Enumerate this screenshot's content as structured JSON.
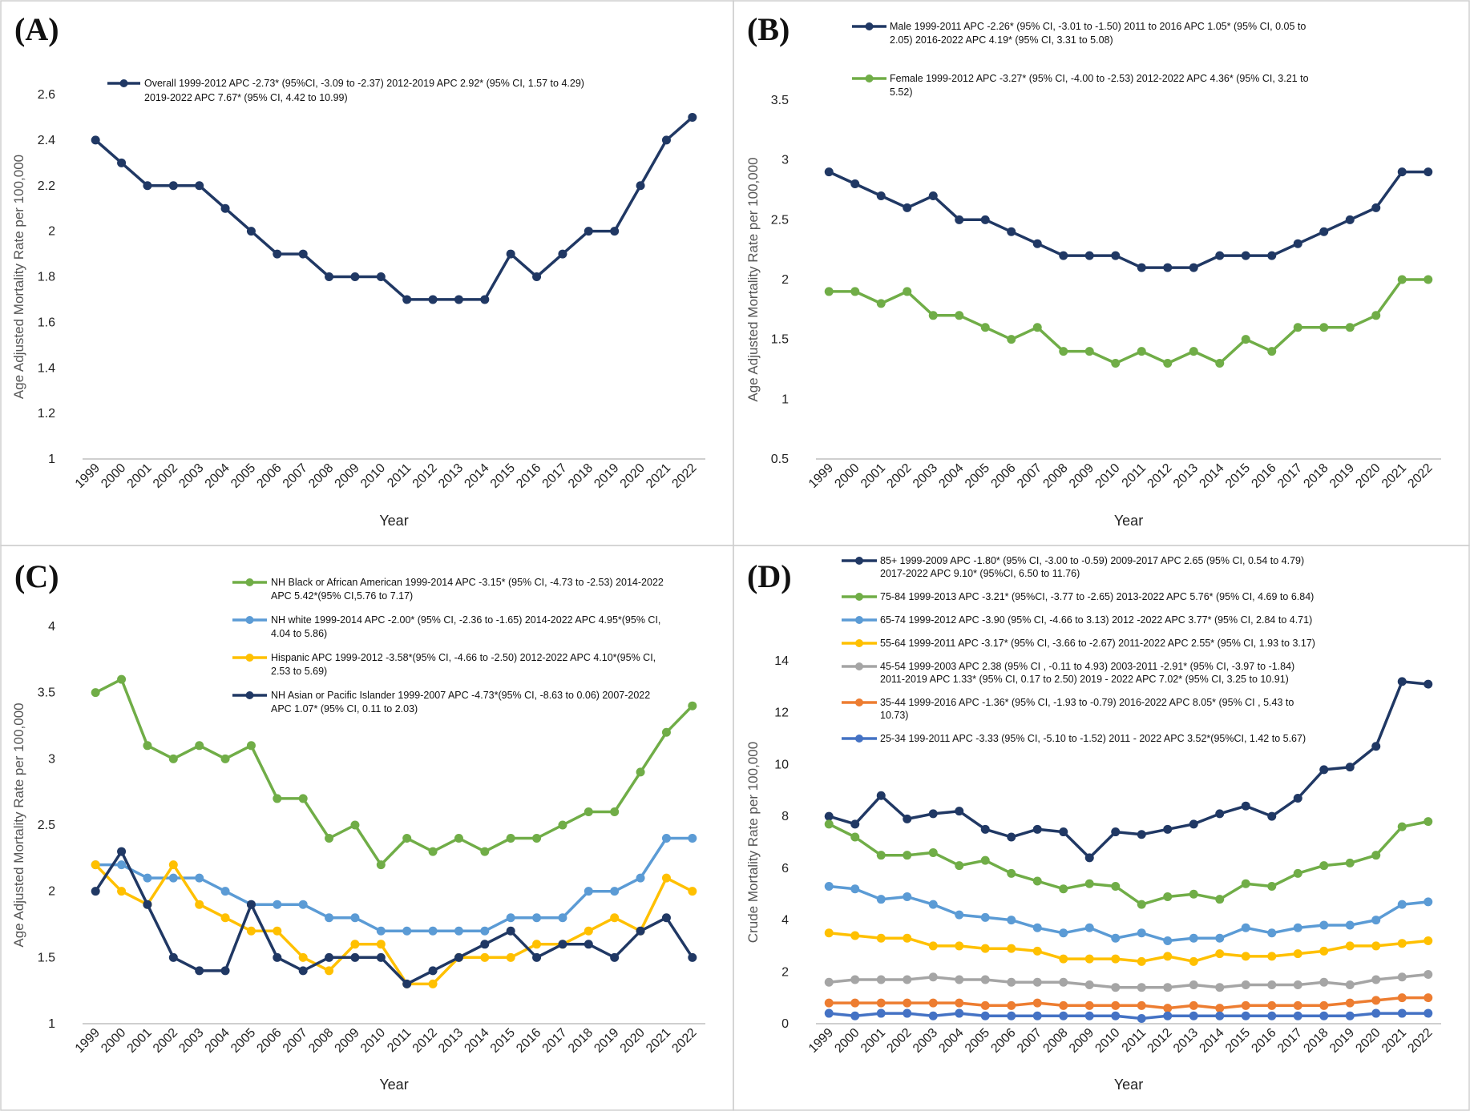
{
  "chart_data": [
    {
      "type": "line",
      "panel": "(A)",
      "xlabel": "Year",
      "ylabel": "Age Adjusted Mortality Rate per 100,000",
      "ylim": [
        1,
        2.6
      ],
      "yticks": [
        "1",
        "1.2",
        "1.4",
        "1.6",
        "1.8",
        "2",
        "2.2",
        "2.4",
        "2.6"
      ],
      "categories": [
        "1999",
        "2000",
        "2001",
        "2002",
        "2003",
        "2004",
        "2005",
        "2006",
        "2007",
        "2008",
        "2009",
        "2010",
        "2011",
        "2012",
        "2013",
        "2014",
        "2015",
        "2016",
        "2017",
        "2018",
        "2019",
        "2020",
        "2021",
        "2022"
      ],
      "series": [
        {
          "name": "Overall",
          "color": "#203864",
          "legend": [
            "Overall 1999-2012 APC -2.73* (95%CI, -3.09 to -2.37) 2012-2019 APC 2.92* (95% CI, 1.57 to 4.29)",
            "2019-2022 APC 7.67* (95% CI, 4.42 to 10.99)"
          ],
          "values": [
            2.4,
            2.3,
            2.2,
            2.2,
            2.2,
            2.1,
            2.0,
            1.9,
            1.9,
            1.8,
            1.8,
            1.8,
            1.7,
            1.7,
            1.7,
            1.7,
            1.9,
            1.8,
            1.9,
            2.0,
            2.0,
            2.2,
            2.4,
            2.5
          ]
        }
      ]
    },
    {
      "type": "line",
      "panel": "(B)",
      "xlabel": "Year",
      "ylabel": "Age Adjusted Mortality Rate per 100,000",
      "ylim": [
        0.5,
        3.5
      ],
      "yticks": [
        "0.5",
        "1",
        "1.5",
        "2",
        "2.5",
        "3",
        "3.5"
      ],
      "categories": [
        "1999",
        "2000",
        "2001",
        "2002",
        "2003",
        "2004",
        "2005",
        "2006",
        "2007",
        "2008",
        "2009",
        "2010",
        "2011",
        "2012",
        "2013",
        "2014",
        "2015",
        "2016",
        "2017",
        "2018",
        "2019",
        "2020",
        "2021",
        "2022"
      ],
      "series": [
        {
          "name": "Male",
          "color": "#203864",
          "legend": [
            "Male 1999-2011 APC -2.26* (95% CI, -3.01 to -1.50) 2011 to 2016 APC 1.05* (95% CI, 0.05 to",
            "2.05) 2016-2022 APC 4.19* (95% CI, 3.31 to 5.08)"
          ],
          "values": [
            2.9,
            2.8,
            2.7,
            2.6,
            2.7,
            2.5,
            2.5,
            2.4,
            2.3,
            2.2,
            2.2,
            2.2,
            2.1,
            2.1,
            2.1,
            2.2,
            2.2,
            2.2,
            2.3,
            2.4,
            2.5,
            2.6,
            2.9,
            2.9
          ]
        },
        {
          "name": "Female",
          "color": "#70AD47",
          "legend": [
            "Female 1999-2012 APC -3.27* (95% CI, -4.00 to -2.53) 2012-2022 APC 4.36* (95% CI, 3.21 to",
            "5.52)"
          ],
          "values": [
            1.9,
            1.9,
            1.8,
            1.9,
            1.7,
            1.7,
            1.6,
            1.5,
            1.6,
            1.4,
            1.4,
            1.3,
            1.4,
            1.3,
            1.4,
            1.3,
            1.5,
            1.4,
            1.6,
            1.6,
            1.6,
            1.7,
            2.0,
            2.0
          ]
        }
      ]
    },
    {
      "type": "line",
      "panel": "(C)",
      "xlabel": "Year",
      "ylabel": "Age Adjusted Mortality Rate per 100,000",
      "ylim": [
        1,
        4
      ],
      "yticks": [
        "1",
        "1.5",
        "2",
        "2.5",
        "3",
        "3.5",
        "4"
      ],
      "categories": [
        "1999",
        "2000",
        "2001",
        "2002",
        "2003",
        "2004",
        "2005",
        "2006",
        "2007",
        "2008",
        "2009",
        "2010",
        "2011",
        "2012",
        "2013",
        "2014",
        "2015",
        "2016",
        "2017",
        "2018",
        "2019",
        "2020",
        "2021",
        "2022"
      ],
      "series": [
        {
          "name": "NH Black or African American",
          "color": "#70AD47",
          "legend": [
            "NH Black or African American 1999-2014 APC -3.15* (95% CI, -4.73 to -2.53) 2014-2022",
            "APC 5.42*(95% CI,5.76  to 7.17)"
          ],
          "values": [
            3.5,
            3.6,
            3.1,
            3.0,
            3.1,
            3.0,
            3.1,
            2.7,
            2.7,
            2.4,
            2.5,
            2.2,
            2.4,
            2.3,
            2.4,
            2.3,
            2.4,
            2.4,
            2.5,
            2.6,
            2.6,
            2.9,
            3.2,
            3.4
          ]
        },
        {
          "name": "NH white",
          "color": "#5B9BD5",
          "legend": [
            "NH white 1999-2014 APC -2.00* (95% CI, -2.36 to -1.65) 2014-2022 APC 4.95*(95% CI,",
            "4.04 to 5.86)"
          ],
          "values": [
            2.2,
            2.2,
            2.1,
            2.1,
            2.1,
            2.0,
            1.9,
            1.9,
            1.9,
            1.8,
            1.8,
            1.7,
            1.7,
            1.7,
            1.7,
            1.7,
            1.8,
            1.8,
            1.8,
            2.0,
            2.0,
            2.1,
            2.4,
            2.4
          ]
        },
        {
          "name": "Hispanic",
          "color": "#FFC000",
          "legend": [
            "Hispanic APC 1999-2012 -3.58*(95% CI, -4.66 to -2.50) 2012-2022 APC 4.10*(95% CI,",
            "2.53 to 5.69)"
          ],
          "values": [
            2.2,
            2.0,
            1.9,
            2.2,
            1.9,
            1.8,
            1.7,
            1.7,
            1.5,
            1.4,
            1.6,
            1.6,
            1.3,
            1.3,
            1.5,
            1.5,
            1.5,
            1.6,
            1.6,
            1.7,
            1.8,
            1.7,
            2.1,
            2.0
          ]
        },
        {
          "name": "NH Asian or Pacific Islander",
          "color": "#203864",
          "legend": [
            "NH Asian or Pacific Islander  1999-2007 APC -4.73*(95% CI, -8.63 to 0.06) 2007-2022",
            "APC 1.07* (95% CI, 0.11 to 2.03)"
          ],
          "values": [
            2.0,
            2.3,
            1.9,
            1.5,
            1.4,
            1.4,
            1.9,
            1.5,
            1.4,
            1.5,
            1.5,
            1.5,
            1.3,
            1.4,
            1.5,
            1.6,
            1.7,
            1.5,
            1.6,
            1.6,
            1.5,
            1.7,
            1.8,
            1.5
          ]
        }
      ]
    },
    {
      "type": "line",
      "panel": "(D)",
      "xlabel": "Year",
      "ylabel": "Crude Mortality Rate per 100,000",
      "ylim": [
        0,
        14
      ],
      "yticks": [
        "0",
        "2",
        "4",
        "6",
        "8",
        "10",
        "12",
        "14"
      ],
      "categories": [
        "1999",
        "2000",
        "2001",
        "2002",
        "2003",
        "2004",
        "2005",
        "2006",
        "2007",
        "2008",
        "2009",
        "2010",
        "2011",
        "2012",
        "2013",
        "2014",
        "2015",
        "2016",
        "2017",
        "2018",
        "2019",
        "2020",
        "2021",
        "2022"
      ],
      "series": [
        {
          "name": "85+",
          "color": "#203864",
          "legend": [
            "85+  1999-2009 APC -1.80* (95% CI, -3.00 to -0.59) 2009-2017 APC 2.65 (95% CI, 0.54 to 4.79)",
            "2017-2022 APC 9.10* (95%CI, 6.50 to 11.76)"
          ],
          "values": [
            8.0,
            7.7,
            8.8,
            7.9,
            8.1,
            8.2,
            7.5,
            7.2,
            7.5,
            7.4,
            6.4,
            7.4,
            7.3,
            7.5,
            7.7,
            8.1,
            8.4,
            8.0,
            8.7,
            9.8,
            9.9,
            10.7,
            13.2,
            13.1
          ]
        },
        {
          "name": "75-84",
          "color": "#70AD47",
          "legend": [
            "75-84 1999-2013 APC -3.21* (95%CI, -3.77 to -2.65) 2013-2022 APC 5.76* (95% CI, 4.69 to 6.84)"
          ],
          "values": [
            7.7,
            7.2,
            6.5,
            6.5,
            6.6,
            6.1,
            6.3,
            5.8,
            5.5,
            5.2,
            5.4,
            5.3,
            4.6,
            4.9,
            5.0,
            4.8,
            5.4,
            5.3,
            5.8,
            6.1,
            6.2,
            6.5,
            7.6,
            7.8
          ]
        },
        {
          "name": "65-74",
          "color": "#5B9BD5",
          "legend": [
            "65-74 1999-2012 APC -3.90 (95% CI, -4.66 to 3.13) 2012 -2022 APC 3.77* (95% CI, 2.84 to 4.71)"
          ],
          "values": [
            5.3,
            5.2,
            4.8,
            4.9,
            4.6,
            4.2,
            4.1,
            4.0,
            3.7,
            3.5,
            3.7,
            3.3,
            3.5,
            3.2,
            3.3,
            3.3,
            3.7,
            3.5,
            3.7,
            3.8,
            3.8,
            4.0,
            4.6,
            4.7
          ]
        },
        {
          "name": "55-64",
          "color": "#FFC000",
          "legend": [
            "55-64 1999-2011 APC -3.17* (95% CI, -3.66 to -2.67) 2011-2022 APC 2.55* (95% CI, 1.93 to 3.17)"
          ],
          "values": [
            3.5,
            3.4,
            3.3,
            3.3,
            3.0,
            3.0,
            2.9,
            2.9,
            2.8,
            2.5,
            2.5,
            2.5,
            2.4,
            2.6,
            2.4,
            2.7,
            2.6,
            2.6,
            2.7,
            2.8,
            3.0,
            3.0,
            3.1,
            3.2
          ]
        },
        {
          "name": "45-54",
          "color": "#A5A5A5",
          "legend": [
            "45-54  1999-2003 APC 2.38 (95% CI , -0.11 to 4.93) 2003-2011 -2.91* (95% CI, -3.97 to -1.84)",
            "2011-2019 APC 1.33* (95% CI, 0.17 to 2.50) 2019 - 2022 APC 7.02* (95% CI, 3.25 to 10.91)"
          ],
          "values": [
            1.6,
            1.7,
            1.7,
            1.7,
            1.8,
            1.7,
            1.7,
            1.6,
            1.6,
            1.6,
            1.5,
            1.4,
            1.4,
            1.4,
            1.5,
            1.4,
            1.5,
            1.5,
            1.5,
            1.6,
            1.5,
            1.7,
            1.8,
            1.9
          ]
        },
        {
          "name": "35-44",
          "color": "#ED7D31",
          "legend": [
            "35-44  1999-2016 APC -1.36* (95% CI, -1.93 to -0.79) 2016-2022 APC 8.05* (95% CI , 5.43 to",
            "10.73)"
          ],
          "values": [
            0.8,
            0.8,
            0.8,
            0.8,
            0.8,
            0.8,
            0.7,
            0.7,
            0.8,
            0.7,
            0.7,
            0.7,
            0.7,
            0.6,
            0.7,
            0.6,
            0.7,
            0.7,
            0.7,
            0.7,
            0.8,
            0.9,
            1.0,
            1.0
          ]
        },
        {
          "name": "25-34",
          "color": "#4472C4",
          "legend": [
            "25-34  199-2011 APC -3.33 (95% CI, -5.10 to -1.52) 2011 - 2022 APC 3.52*(95%CI, 1.42 to 5.67)"
          ],
          "values": [
            0.4,
            0.3,
            0.4,
            0.4,
            0.3,
            0.4,
            0.3,
            0.3,
            0.3,
            0.3,
            0.3,
            0.3,
            0.2,
            0.3,
            0.3,
            0.3,
            0.3,
            0.3,
            0.3,
            0.3,
            0.3,
            0.4,
            0.4,
            0.4
          ]
        }
      ]
    }
  ]
}
